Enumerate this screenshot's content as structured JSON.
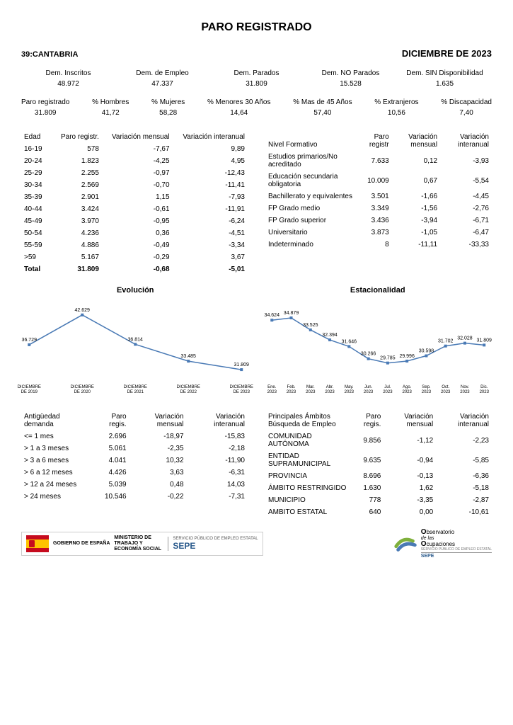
{
  "title": "PARO REGISTRADO",
  "region_code": "39:",
  "region_name": "CANTABRIA",
  "period": "DICIEMBRE DE 2023",
  "summary5": [
    {
      "label": "Dem. Inscritos",
      "value": "48.972"
    },
    {
      "label": "Dem. de Empleo",
      "value": "47.337"
    },
    {
      "label": "Dem. Parados",
      "value": "31.809"
    },
    {
      "label": "Dem. NO Parados",
      "value": "15.528"
    },
    {
      "label": "Dem. SIN Disponibilidad",
      "value": "1.635"
    }
  ],
  "summary7": [
    {
      "label": "Paro registrado",
      "value": "31.809"
    },
    {
      "label": "% Hombres",
      "value": "41,72"
    },
    {
      "label": "% Mujeres",
      "value": "58,28"
    },
    {
      "label": "% Menores 30 Años",
      "value": "14,64"
    },
    {
      "label": "% Mas de 45 Años",
      "value": "57,40"
    },
    {
      "label": "% Extranjeros",
      "value": "10,56"
    },
    {
      "label": "% Discapacidad",
      "value": "7,40"
    }
  ],
  "age_table": {
    "cols": [
      "Edad",
      "Paro registr.",
      "Variación mensual",
      "Variación interanual"
    ],
    "rows": [
      [
        "16-19",
        "578",
        "-7,67",
        "9,89"
      ],
      [
        "20-24",
        "1.823",
        "-4,25",
        "4,95"
      ],
      [
        "25-29",
        "2.255",
        "-0,97",
        "-12,43"
      ],
      [
        "30-34",
        "2.569",
        "-0,70",
        "-11,41"
      ],
      [
        "35-39",
        "2.901",
        "1,15",
        "-7,93"
      ],
      [
        "40-44",
        "3.424",
        "-0,61",
        "-11,91"
      ],
      [
        "45-49",
        "3.970",
        "-0,95",
        "-6,24"
      ],
      [
        "50-54",
        "4.236",
        "0,36",
        "-4,51"
      ],
      [
        "55-59",
        "4.886",
        "-0,49",
        "-3,34"
      ],
      [
        ">59",
        "5.167",
        "-0,29",
        "3,67"
      ]
    ],
    "total": [
      "Total",
      "31.809",
      "-0,68",
      "-5,01"
    ]
  },
  "edu_table": {
    "cols": [
      "Nivel Formativo",
      "Paro registr",
      "Variación mensual",
      "Variación interanual"
    ],
    "rows": [
      [
        "Estudios primarios/No acreditado",
        "7.633",
        "0,12",
        "-3,93"
      ],
      [
        "Educación secundaria obligatoria",
        "10.009",
        "0,67",
        "-5,54"
      ],
      [
        "Bachillerato y equivalentes",
        "3.501",
        "-1,66",
        "-4,45"
      ],
      [
        "FP Grado medio",
        "3.349",
        "-1,56",
        "-2,76"
      ],
      [
        "FP Grado superior",
        "3.436",
        "-3,94",
        "-6,71"
      ],
      [
        "Universitario",
        "3.873",
        "-1,05",
        "-6,47"
      ],
      [
        "Indeterminado",
        "8",
        "-11,11",
        "-33,33"
      ]
    ]
  },
  "chart1": {
    "title": "Evolución",
    "labels": [
      "DICIEMBRE DE 2019",
      "DICIEMBRE DE 2020",
      "DICIEMBRE DE 2021",
      "DICIEMBRE DE 2022",
      "DICIEMBRE DE 2023"
    ],
    "values": [
      36729,
      42629,
      36814,
      33485,
      31809
    ],
    "display": [
      "36.729",
      "42.629",
      "36.814",
      "33.485",
      "31.809"
    ],
    "ylim": [
      30000,
      44000
    ],
    "line_color": "#4a7ab5",
    "marker_color": "#4a7ab5"
  },
  "chart2": {
    "title": "Estacionalidad",
    "labels": [
      "Ene. 2023",
      "Feb. 2023",
      "Mar. 2023",
      "Abr. 2023",
      "May. 2023",
      "Jun. 2023",
      "Jul. 2023",
      "Ago. 2023",
      "Sep. 2023",
      "Oct. 2023",
      "Nov. 2023",
      "Dic. 2023"
    ],
    "values": [
      34624,
      34879,
      33525,
      32394,
      31646,
      30266,
      29785,
      29996,
      30598,
      31702,
      32028,
      31809
    ],
    "display": [
      "34.624",
      "34.879",
      "33.525",
      "32.394",
      "31.646",
      "30.266",
      "29.785",
      "29.996",
      "30.598",
      "31.702",
      "32.028",
      "31.809"
    ],
    "ylim": [
      28000,
      36000
    ],
    "line_color": "#4a7ab5",
    "marker_color": "#4a7ab5"
  },
  "antiq_table": {
    "cols": [
      "Antigüedad demanda",
      "Paro regis.",
      "Variación mensual",
      "Variación interanual"
    ],
    "rows": [
      [
        "<= 1 mes",
        "2.696",
        "-18,97",
        "-15,83"
      ],
      [
        "> 1 a 3 meses",
        "5.061",
        "-2,35",
        "-2,18"
      ],
      [
        "> 3 a 6 meses",
        "4.041",
        "10,32",
        "-11,90"
      ],
      [
        "> 6 a 12 meses",
        "4.426",
        "3,63",
        "-6,31"
      ],
      [
        "> 12 a 24 meses",
        "5.039",
        "0,48",
        "14,03"
      ],
      [
        "> 24 meses",
        "10.546",
        "-0,22",
        "-7,31"
      ]
    ]
  },
  "ambito_table": {
    "cols": [
      "Principales Ámbitos Búsqueda de Empleo",
      "Paro regis.",
      "Variación mensual",
      "Variación interanual"
    ],
    "rows": [
      [
        "COMUNIDAD AUTÓNOMA",
        "9.856",
        "-1,12",
        "-2,23"
      ],
      [
        "ENTIDAD SUPRAMUNICIPAL",
        "9.635",
        "-0,94",
        "-5,85"
      ],
      [
        "PROVINCIA",
        "8.696",
        "-0,13",
        "-6,36"
      ],
      [
        "ÁMBITO RESTRINGIDO",
        "1.630",
        "1,62",
        "-5,18"
      ],
      [
        "MUNICIPIO",
        "778",
        "-3,35",
        "-2,87"
      ],
      [
        "AMBITO ESTATAL",
        "640",
        "0,00",
        "-10,61"
      ]
    ]
  },
  "footer": {
    "gob1": "GOBIERNO DE ESPAÑA",
    "gob2": "MINISTERIO DE TRABAJO Y ECONOMÍA SOCIAL",
    "sepe_sub": "SERVICIO PÚBLICO DE EMPLEO ESTATAL",
    "sepe": "SEPE",
    "obs1": "bservatorio",
    "obs2": "de las",
    "obs3": "cupaciones",
    "obs_sub": "SERVICIO PÚBLICO DE EMPLEO ESTATAL",
    "obs_sepe": "SEPE"
  }
}
